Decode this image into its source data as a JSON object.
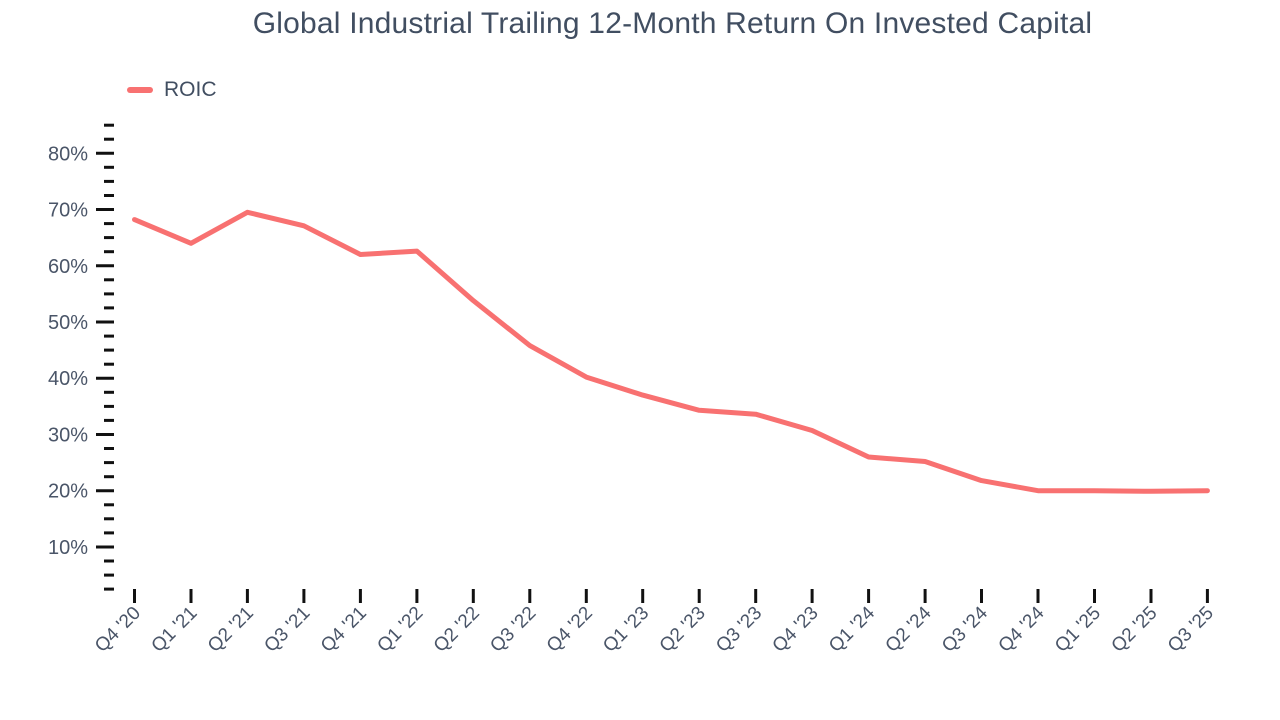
{
  "chart_data": {
    "type": "line",
    "title": "Global Industrial Trailing 12-Month Return On Invested Capital",
    "categories": [
      "Q4 '20",
      "Q1 '21",
      "Q2 '21",
      "Q3 '21",
      "Q4 '21",
      "Q1 '22",
      "Q2 '22",
      "Q3 '22",
      "Q4 '22",
      "Q1 '23",
      "Q2 '23",
      "Q3 '23",
      "Q4 '23",
      "Q1 '24",
      "Q2 '24",
      "Q3 '24",
      "Q4 '24",
      "Q1 '25",
      "Q2 '25",
      "Q3 '25"
    ],
    "series": [
      {
        "name": "ROIC",
        "color": "#f87171",
        "values": [
          68.2,
          64.0,
          69.5,
          67.1,
          62.0,
          62.6,
          53.8,
          45.8,
          40.2,
          37.0,
          34.3,
          33.6,
          30.7,
          26.0,
          25.2,
          21.8,
          20.0,
          20.0,
          19.9,
          20.0
        ]
      }
    ],
    "xlabel": "",
    "ylabel": "",
    "y_axis": {
      "min": 2.5,
      "max": 85,
      "major_step": 10,
      "minor_step": 2.5,
      "unit": "%",
      "tick_labels": [
        "10%",
        "20%",
        "30%",
        "40%",
        "50%",
        "60%",
        "70%",
        "80%"
      ]
    },
    "x_axis": {
      "label_rotation": -45,
      "ticks_per_category": true
    },
    "legend_position": "top-left",
    "grid": false,
    "colors": {
      "line": "#f87171",
      "tick": "#111111",
      "axis_label": "#4a5568",
      "title_text": "#414e61"
    }
  }
}
